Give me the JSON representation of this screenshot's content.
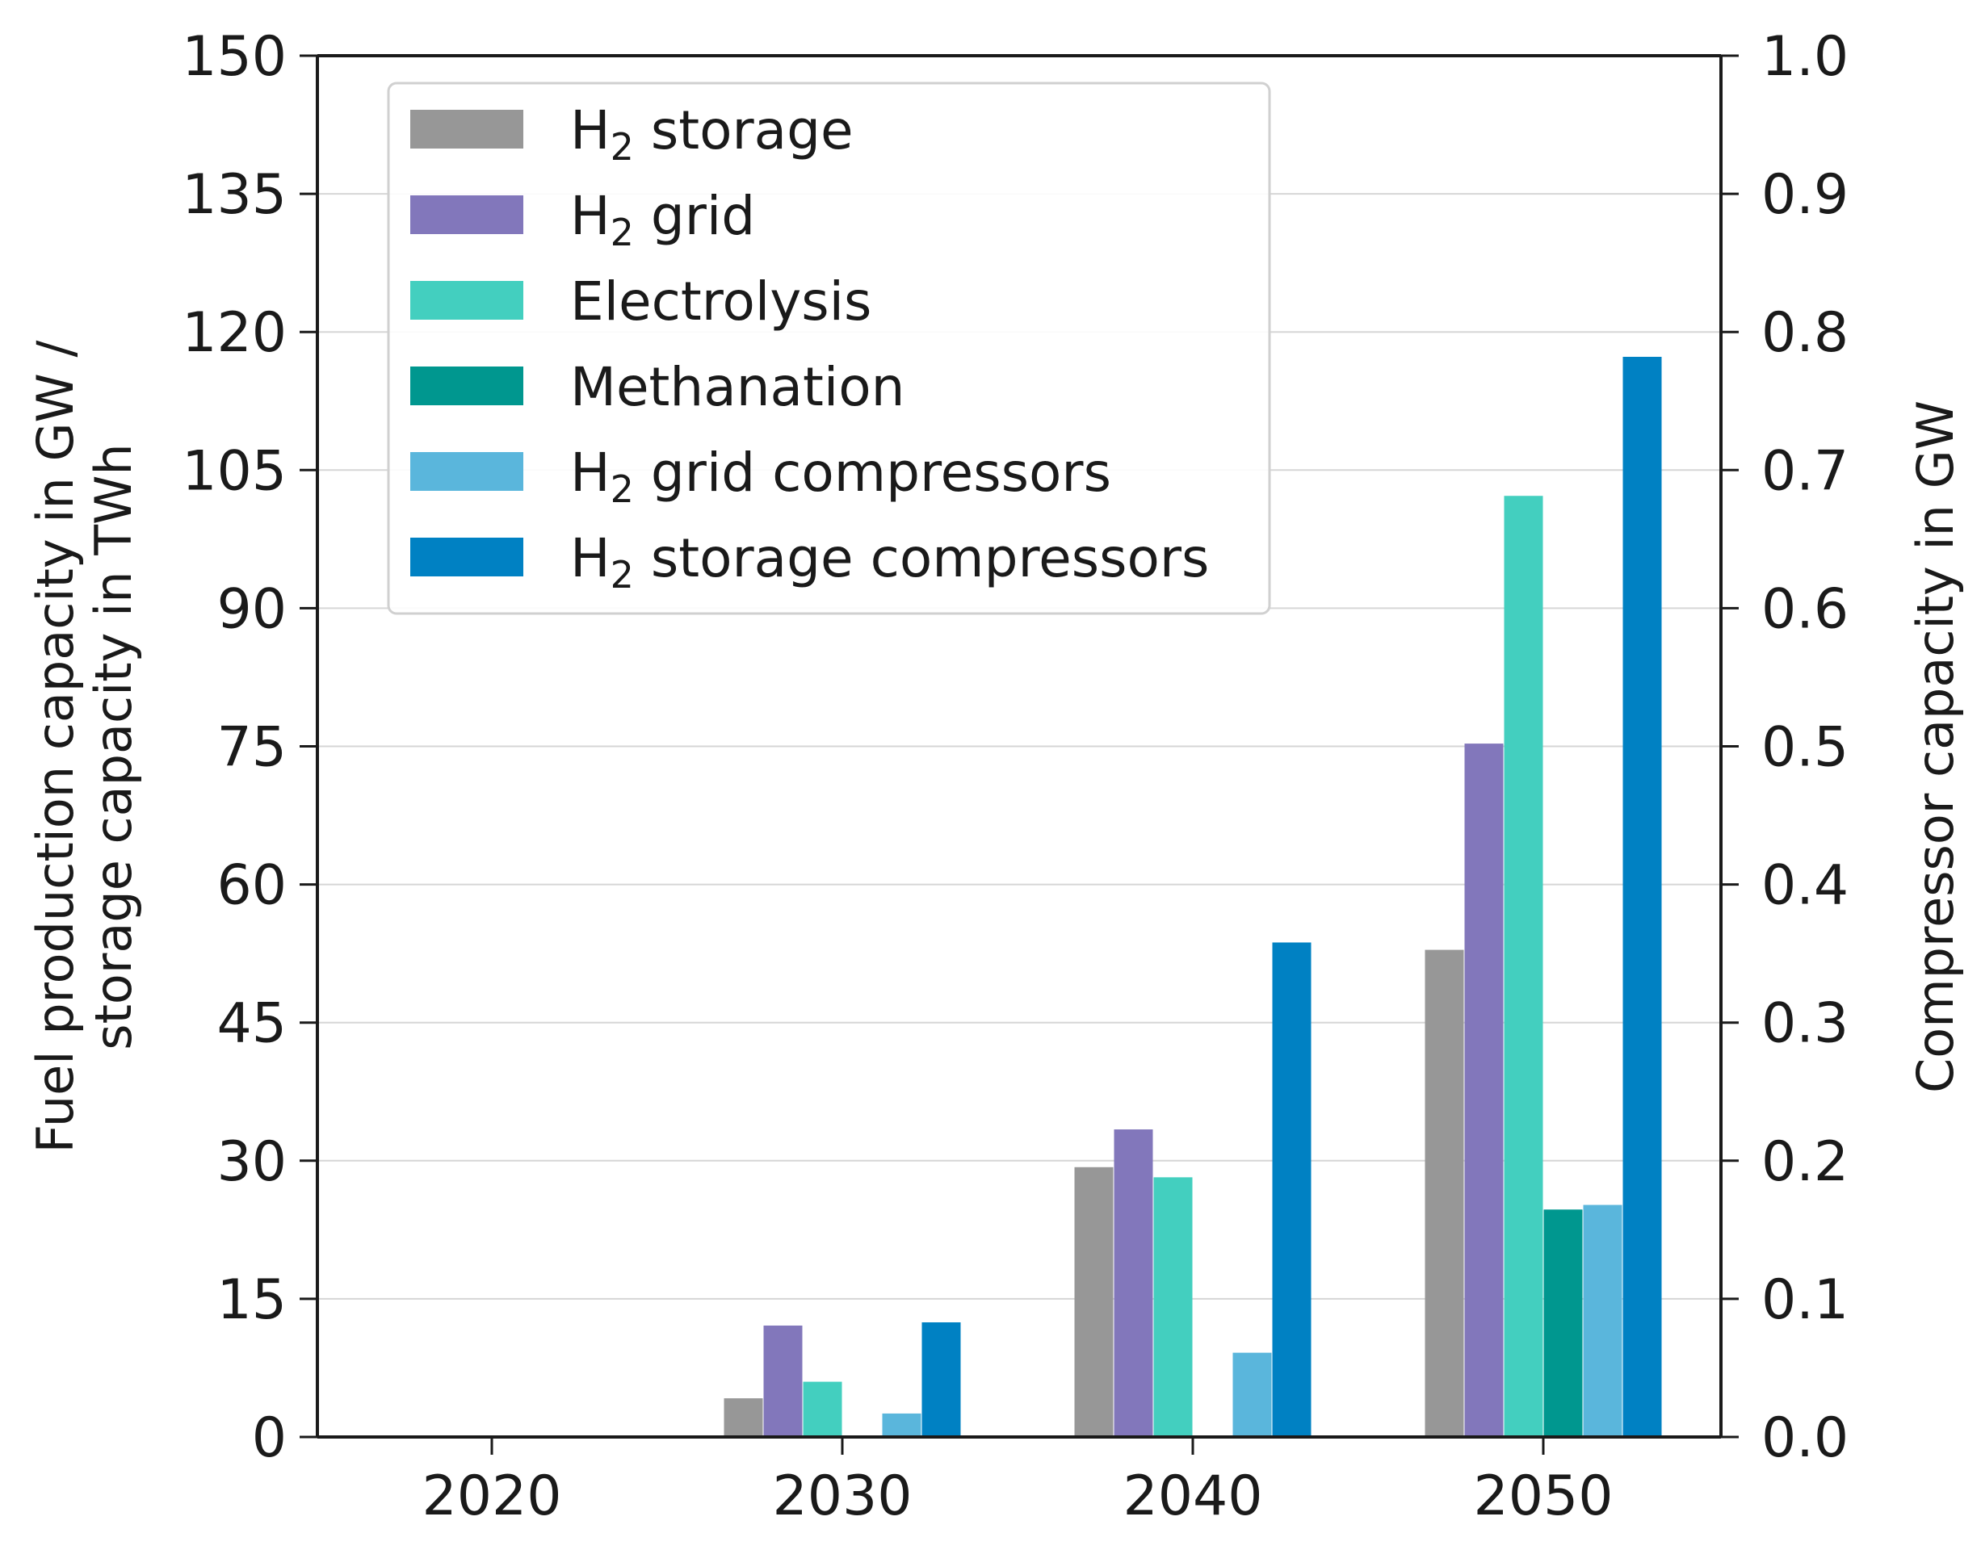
{
  "chart_data": {
    "type": "bar",
    "categories": [
      "2020",
      "2030",
      "2040",
      "2050"
    ],
    "ylabel_left": [
      "Fuel production capacity in GW /",
      "storage capacity in TWh"
    ],
    "ylabel_right": "Compressor capacity in GW",
    "ylim_left": [
      0,
      150
    ],
    "ylim_right": [
      0,
      1.0
    ],
    "yticks_left": [
      "0",
      "15",
      "30",
      "45",
      "60",
      "75",
      "90",
      "105",
      "120",
      "135",
      "150"
    ],
    "yticks_right": [
      "0.0",
      "0.1",
      "0.2",
      "0.3",
      "0.4",
      "0.5",
      "0.6",
      "0.7",
      "0.8",
      "0.9",
      "1.0"
    ],
    "grid": "horizontal",
    "legend_position": "top-left",
    "series": [
      {
        "name": "H2 storage",
        "base": "H",
        "sub": "2",
        "rest": " storage",
        "axis": "left",
        "color": "#979797",
        "values": [
          0,
          4.2,
          29.3,
          52.9
        ]
      },
      {
        "name": "H2 grid",
        "base": "H",
        "sub": "2",
        "rest": " grid",
        "axis": "left",
        "color": "#8277bb",
        "values": [
          0,
          12.1,
          33.4,
          75.3
        ]
      },
      {
        "name": "Electrolysis",
        "base": "Electrolysis",
        "sub": "",
        "rest": "",
        "axis": "left",
        "color": "#43cfbf",
        "values": [
          0,
          6.0,
          28.2,
          102.2
        ]
      },
      {
        "name": "Methanation",
        "base": "Methanation",
        "sub": "",
        "rest": "",
        "axis": "left",
        "color": "#00978f",
        "values": [
          0,
          0,
          0,
          24.7
        ]
      },
      {
        "name": "H2 grid compressors",
        "base": "H",
        "sub": "2",
        "rest": " grid compressors",
        "axis": "right",
        "color": "#5ab6dc",
        "values": [
          0,
          0.017,
          0.061,
          0.168
        ]
      },
      {
        "name": "H2 storage compressors",
        "base": "H",
        "sub": "2",
        "rest": " storage compressors",
        "axis": "right",
        "color": "#0081c3",
        "values": [
          0,
          0.083,
          0.358,
          0.782
        ]
      }
    ]
  }
}
